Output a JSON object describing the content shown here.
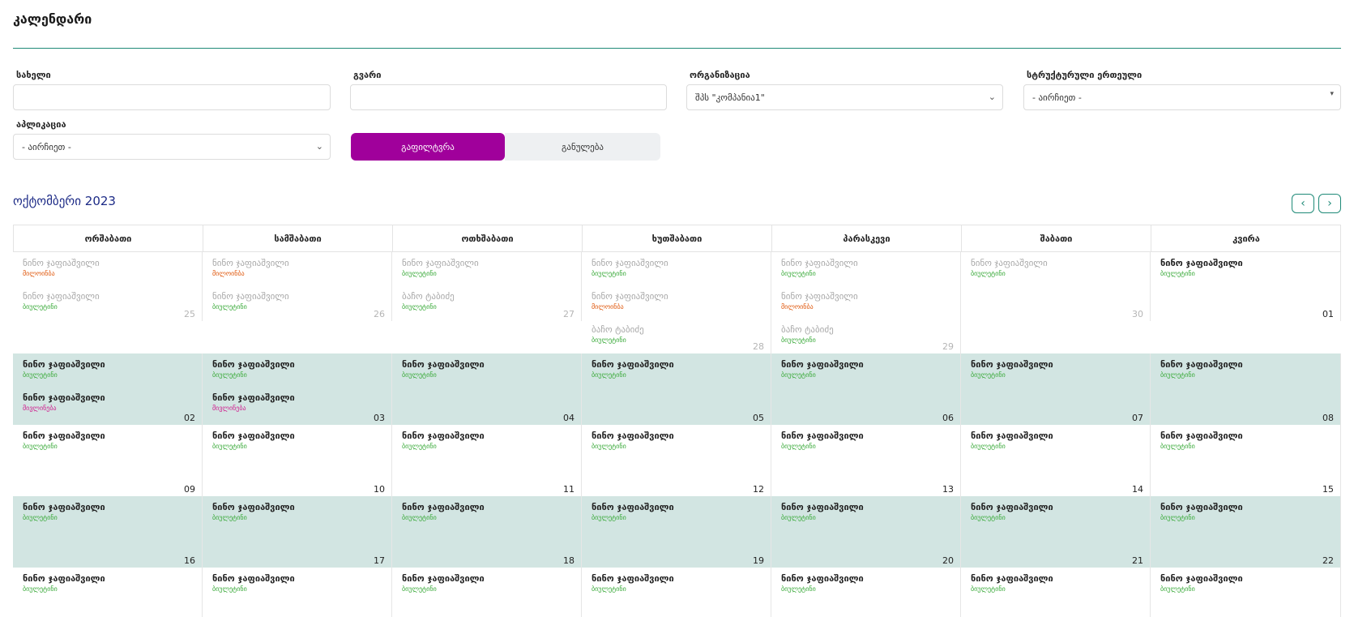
{
  "page": {
    "title": "კალენდარი"
  },
  "filters": {
    "name_label": "სახელი",
    "name_value": "",
    "surname_label": "გვარი",
    "surname_value": "",
    "organization_label": "ორგანიზაცია",
    "organization_value": "შპს \"კომპანია1\"",
    "unit_label": "სტრუქტურული ერთეული",
    "unit_value": "- აირჩიეთ -",
    "application_label": "აპლიკაცია",
    "application_value": "- აირჩიეთ -",
    "filter_button": "გაფილტვრა",
    "reset_button": "განულება"
  },
  "calendar": {
    "month_title": "ოქტომბერი 2023",
    "prev_icon": "chevron-left-icon",
    "next_icon": "chevron-right-icon",
    "weekdays": [
      "ორშაბათი",
      "სამშაბათი",
      "ოთხშაბათი",
      "ხუთშაბათი",
      "პარასკევი",
      "შაბათი",
      "კვირა"
    ],
    "colors": {
      "highlight_row": "#d2e5e2",
      "accent": "#1f8a78",
      "filter_button": "#a0009b",
      "status_green": "#3aaa3a",
      "status_orange": "#e05a10",
      "status_pink": "#d0208f"
    },
    "weeks": [
      {
        "highlight": false,
        "days": [
          {
            "num": "25",
            "muted": true,
            "events": [
              {
                "name": "ნინო ჯაფიაშვილი",
                "status": "მილოინბა",
                "tone": "orange"
              },
              {
                "name": "ნინო ჯაფიაშვილი",
                "status": "ბიულეტინი",
                "tone": "green"
              }
            ]
          },
          {
            "num": "26",
            "muted": true,
            "events": [
              {
                "name": "ნინო ჯაფიაშვილი",
                "status": "მილოინბა",
                "tone": "orange"
              },
              {
                "name": "ნინო ჯაფიაშვილი",
                "status": "ბიულეტინი",
                "tone": "green"
              }
            ]
          },
          {
            "num": "27",
            "muted": true,
            "events": [
              {
                "name": "ნინო ჯაფიაშვილი",
                "status": "ბიულეტინი",
                "tone": "green"
              },
              {
                "name": "ბაჩო ტაბიძე",
                "status": "ბიულეტინი",
                "tone": "green"
              }
            ]
          },
          {
            "num": "28",
            "muted": true,
            "events": [
              {
                "name": "ნინო ჯაფიაშვილი",
                "status": "ბიულეტინი",
                "tone": "green"
              },
              {
                "name": "ნინო ჯაფიაშვილი",
                "status": "მილოინბა",
                "tone": "orange"
              },
              {
                "name": "ბაჩო ტაბიძე",
                "status": "ბიულეტინი",
                "tone": "green"
              }
            ]
          },
          {
            "num": "29",
            "muted": true,
            "events": [
              {
                "name": "ნინო ჯაფიაშვილი",
                "status": "ბიულეტინი",
                "tone": "green"
              },
              {
                "name": "ნინო ჯაფიაშვილი",
                "status": "მილოინბა",
                "tone": "orange"
              },
              {
                "name": "ბაჩო ტაბიძე",
                "status": "ბიულეტინი",
                "tone": "green"
              }
            ]
          },
          {
            "num": "30",
            "muted": true,
            "events": [
              {
                "name": "ნინო ჯაფიაშვილი",
                "status": "ბიულეტინი",
                "tone": "green"
              }
            ]
          },
          {
            "num": "01",
            "muted": false,
            "events": [
              {
                "name": "ნინო ჯაფიაშვილი",
                "status": "ბიულეტინი",
                "tone": "green"
              }
            ]
          }
        ]
      },
      {
        "highlight": true,
        "days": [
          {
            "num": "02",
            "muted": false,
            "events": [
              {
                "name": "ნინო ჯაფიაშვილი",
                "status": "ბიულეტინი",
                "tone": "green"
              },
              {
                "name": "ნინო ჯაფიაშვილი",
                "status": "მივლინება",
                "tone": "pink"
              }
            ]
          },
          {
            "num": "03",
            "muted": false,
            "events": [
              {
                "name": "ნინო ჯაფიაშვილი",
                "status": "ბიულეტინი",
                "tone": "green"
              },
              {
                "name": "ნინო ჯაფიაშვილი",
                "status": "მივლინება",
                "tone": "pink"
              }
            ]
          },
          {
            "num": "04",
            "muted": false,
            "events": [
              {
                "name": "ნინო ჯაფიაშვილი",
                "status": "ბიულეტინი",
                "tone": "green"
              }
            ]
          },
          {
            "num": "05",
            "muted": false,
            "events": [
              {
                "name": "ნინო ჯაფიაშვილი",
                "status": "ბიულეტინი",
                "tone": "green"
              }
            ]
          },
          {
            "num": "06",
            "muted": false,
            "events": [
              {
                "name": "ნინო ჯაფიაშვილი",
                "status": "ბიულეტინი",
                "tone": "green"
              }
            ]
          },
          {
            "num": "07",
            "muted": false,
            "events": [
              {
                "name": "ნინო ჯაფიაშვილი",
                "status": "ბიულეტინი",
                "tone": "green"
              }
            ]
          },
          {
            "num": "08",
            "muted": false,
            "events": [
              {
                "name": "ნინო ჯაფიაშვილი",
                "status": "ბიულეტინი",
                "tone": "green"
              }
            ]
          }
        ]
      },
      {
        "highlight": false,
        "days": [
          {
            "num": "09",
            "muted": false,
            "events": [
              {
                "name": "ნინო ჯაფიაშვილი",
                "status": "ბიულეტინი",
                "tone": "green"
              }
            ]
          },
          {
            "num": "10",
            "muted": false,
            "events": [
              {
                "name": "ნინო ჯაფიაშვილი",
                "status": "ბიულეტინი",
                "tone": "green"
              }
            ]
          },
          {
            "num": "11",
            "muted": false,
            "events": [
              {
                "name": "ნინო ჯაფიაშვილი",
                "status": "ბიულეტინი",
                "tone": "green"
              }
            ]
          },
          {
            "num": "12",
            "muted": false,
            "events": [
              {
                "name": "ნინო ჯაფიაშვილი",
                "status": "ბიულეტინი",
                "tone": "green"
              }
            ]
          },
          {
            "num": "13",
            "muted": false,
            "events": [
              {
                "name": "ნინო ჯაფიაშვილი",
                "status": "ბიულეტინი",
                "tone": "green"
              }
            ]
          },
          {
            "num": "14",
            "muted": false,
            "events": [
              {
                "name": "ნინო ჯაფიაშვილი",
                "status": "ბიულეტინი",
                "tone": "green"
              }
            ]
          },
          {
            "num": "15",
            "muted": false,
            "events": [
              {
                "name": "ნინო ჯაფიაშვილი",
                "status": "ბიულეტინი",
                "tone": "green"
              }
            ]
          }
        ]
      },
      {
        "highlight": true,
        "days": [
          {
            "num": "16",
            "muted": false,
            "events": [
              {
                "name": "ნინო ჯაფიაშვილი",
                "status": "ბიულეტინი",
                "tone": "green"
              }
            ]
          },
          {
            "num": "17",
            "muted": false,
            "events": [
              {
                "name": "ნინო ჯაფიაშვილი",
                "status": "ბიულეტინი",
                "tone": "green"
              }
            ]
          },
          {
            "num": "18",
            "muted": false,
            "events": [
              {
                "name": "ნინო ჯაფიაშვილი",
                "status": "ბიულეტინი",
                "tone": "green"
              }
            ]
          },
          {
            "num": "19",
            "muted": false,
            "events": [
              {
                "name": "ნინო ჯაფიაშვილი",
                "status": "ბიულეტინი",
                "tone": "green"
              }
            ]
          },
          {
            "num": "20",
            "muted": false,
            "events": [
              {
                "name": "ნინო ჯაფიაშვილი",
                "status": "ბიულეტინი",
                "tone": "green"
              }
            ]
          },
          {
            "num": "21",
            "muted": false,
            "events": [
              {
                "name": "ნინო ჯაფიაშვილი",
                "status": "ბიულეტინი",
                "tone": "green"
              }
            ]
          },
          {
            "num": "22",
            "muted": false,
            "events": [
              {
                "name": "ნინო ჯაფიაშვილი",
                "status": "ბიულეტინი",
                "tone": "green"
              }
            ]
          }
        ]
      },
      {
        "highlight": false,
        "days": [
          {
            "num": "",
            "muted": false,
            "events": [
              {
                "name": "ნინო ჯაფიაშვილი",
                "status": "ბიულეტინი",
                "tone": "green"
              }
            ]
          },
          {
            "num": "",
            "muted": false,
            "events": [
              {
                "name": "ნინო ჯაფიაშვილი",
                "status": "ბიულეტინი",
                "tone": "green"
              }
            ]
          },
          {
            "num": "",
            "muted": false,
            "events": [
              {
                "name": "ნინო ჯაფიაშვილი",
                "status": "ბიულეტინი",
                "tone": "green"
              }
            ]
          },
          {
            "num": "",
            "muted": false,
            "events": [
              {
                "name": "ნინო ჯაფიაშვილი",
                "status": "ბიულეტინი",
                "tone": "green"
              }
            ]
          },
          {
            "num": "",
            "muted": false,
            "events": [
              {
                "name": "ნინო ჯაფიაშვილი",
                "status": "ბიულეტინი",
                "tone": "green"
              }
            ]
          },
          {
            "num": "",
            "muted": false,
            "events": [
              {
                "name": "ნინო ჯაფიაშვილი",
                "status": "ბიულეტინი",
                "tone": "green"
              }
            ]
          },
          {
            "num": "",
            "muted": false,
            "events": [
              {
                "name": "ნინო ჯაფიაშვილი",
                "status": "ბიულეტინი",
                "tone": "green"
              }
            ]
          }
        ]
      }
    ]
  }
}
